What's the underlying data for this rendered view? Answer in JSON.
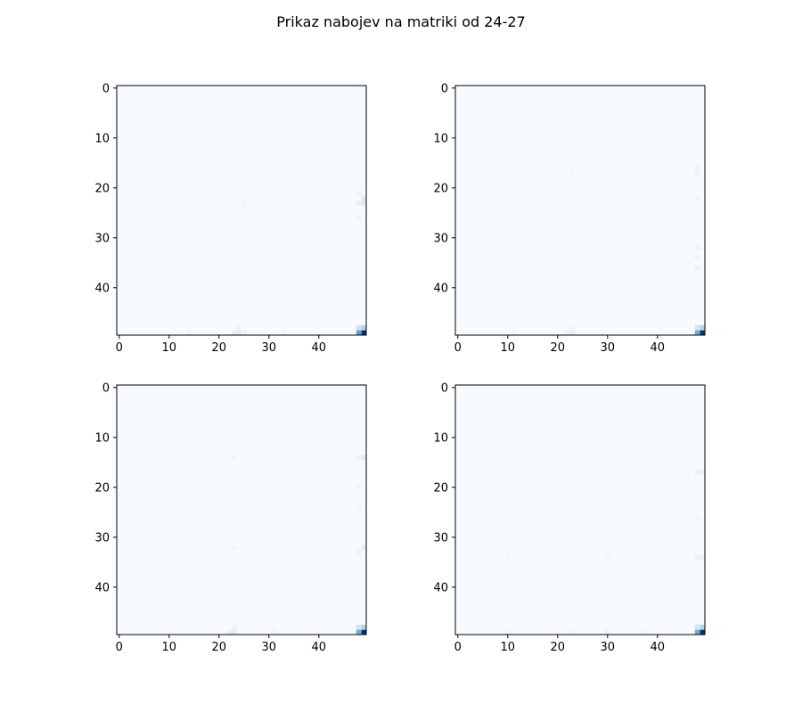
{
  "figure": {
    "suptitle": "Prikaz nabojev na matriki od 24-27"
  },
  "chart_data": [
    {
      "type": "heatmap",
      "colormap": "Blues",
      "grid": false,
      "matrix_size": [
        50,
        50
      ],
      "x_ticks": [
        "0",
        "10",
        "20",
        "30",
        "40"
      ],
      "y_ticks": [
        "0",
        "10",
        "20",
        "30",
        "40"
      ],
      "x_tick_values": [
        0,
        10,
        20,
        30,
        40
      ],
      "y_tick_values": [
        0,
        10,
        20,
        30,
        40
      ],
      "cells": [
        {
          "row": 49,
          "col": 49,
          "value": 1.0
        },
        {
          "row": 49,
          "col": 48,
          "value": 0.55
        },
        {
          "row": 48,
          "col": 49,
          "value": 0.3
        },
        {
          "row": 48,
          "col": 48,
          "value": 0.2
        },
        {
          "row": 22,
          "col": 49,
          "value": 0.12
        },
        {
          "row": 23,
          "col": 49,
          "value": 0.12
        },
        {
          "row": 23,
          "col": 48,
          "value": 0.08
        },
        {
          "row": 21,
          "col": 48,
          "value": 0.06
        },
        {
          "row": 26,
          "col": 48,
          "value": 0.06
        },
        {
          "row": 49,
          "col": 24,
          "value": 0.1
        },
        {
          "row": 49,
          "col": 23,
          "value": 0.08
        },
        {
          "row": 49,
          "col": 25,
          "value": 0.06
        },
        {
          "row": 48,
          "col": 24,
          "value": 0.06
        },
        {
          "row": 49,
          "col": 14,
          "value": 0.05
        },
        {
          "row": 49,
          "col": 33,
          "value": 0.04
        },
        {
          "row": 24,
          "col": 24,
          "value": 0.04
        },
        {
          "row": 23,
          "col": 25,
          "value": 0.04
        }
      ]
    },
    {
      "type": "heatmap",
      "colormap": "Blues",
      "grid": false,
      "matrix_size": [
        50,
        50
      ],
      "x_ticks": [
        "0",
        "10",
        "20",
        "30",
        "40"
      ],
      "y_ticks": [
        "0",
        "10",
        "20",
        "30",
        "40"
      ],
      "x_tick_values": [
        0,
        10,
        20,
        30,
        40
      ],
      "y_tick_values": [
        0,
        10,
        20,
        30,
        40
      ],
      "cells": [
        {
          "row": 49,
          "col": 49,
          "value": 1.0
        },
        {
          "row": 49,
          "col": 48,
          "value": 0.5
        },
        {
          "row": 48,
          "col": 49,
          "value": 0.3
        },
        {
          "row": 48,
          "col": 48,
          "value": 0.18
        },
        {
          "row": 16,
          "col": 48,
          "value": 0.05
        },
        {
          "row": 17,
          "col": 48,
          "value": 0.05
        },
        {
          "row": 22,
          "col": 48,
          "value": 0.04
        },
        {
          "row": 32,
          "col": 48,
          "value": 0.05
        },
        {
          "row": 34,
          "col": 48,
          "value": 0.05
        },
        {
          "row": 36,
          "col": 48,
          "value": 0.05
        },
        {
          "row": 49,
          "col": 23,
          "value": 0.08
        },
        {
          "row": 49,
          "col": 22,
          "value": 0.06
        },
        {
          "row": 48,
          "col": 23,
          "value": 0.05
        },
        {
          "row": 49,
          "col": 11,
          "value": 0.04
        },
        {
          "row": 17,
          "col": 23,
          "value": 0.03
        }
      ]
    },
    {
      "type": "heatmap",
      "colormap": "Blues",
      "grid": false,
      "matrix_size": [
        50,
        50
      ],
      "x_ticks": [
        "0",
        "10",
        "20",
        "30",
        "40"
      ],
      "y_ticks": [
        "0",
        "10",
        "20",
        "30",
        "40"
      ],
      "x_tick_values": [
        0,
        10,
        20,
        30,
        40
      ],
      "y_tick_values": [
        0,
        10,
        20,
        30,
        40
      ],
      "cells": [
        {
          "row": 49,
          "col": 49,
          "value": 1.0
        },
        {
          "row": 49,
          "col": 48,
          "value": 0.5
        },
        {
          "row": 48,
          "col": 49,
          "value": 0.3
        },
        {
          "row": 48,
          "col": 48,
          "value": 0.18
        },
        {
          "row": 14,
          "col": 49,
          "value": 0.1
        },
        {
          "row": 14,
          "col": 48,
          "value": 0.07
        },
        {
          "row": 32,
          "col": 49,
          "value": 0.08
        },
        {
          "row": 33,
          "col": 48,
          "value": 0.06
        },
        {
          "row": 24,
          "col": 48,
          "value": 0.04
        },
        {
          "row": 20,
          "col": 48,
          "value": 0.04
        },
        {
          "row": 49,
          "col": 23,
          "value": 0.1
        },
        {
          "row": 49,
          "col": 22,
          "value": 0.07
        },
        {
          "row": 48,
          "col": 23,
          "value": 0.05
        },
        {
          "row": 49,
          "col": 13,
          "value": 0.04
        },
        {
          "row": 49,
          "col": 31,
          "value": 0.04
        },
        {
          "row": 14,
          "col": 23,
          "value": 0.04
        },
        {
          "row": 32,
          "col": 23,
          "value": 0.04
        }
      ]
    },
    {
      "type": "heatmap",
      "colormap": "Blues",
      "grid": false,
      "matrix_size": [
        50,
        50
      ],
      "x_ticks": [
        "0",
        "10",
        "20",
        "30",
        "40"
      ],
      "y_ticks": [
        "0",
        "10",
        "20",
        "30",
        "40"
      ],
      "x_tick_values": [
        0,
        10,
        20,
        30,
        40
      ],
      "y_tick_values": [
        0,
        10,
        20,
        30,
        40
      ],
      "cells": [
        {
          "row": 49,
          "col": 49,
          "value": 1.0
        },
        {
          "row": 49,
          "col": 48,
          "value": 0.5
        },
        {
          "row": 48,
          "col": 49,
          "value": 0.3
        },
        {
          "row": 48,
          "col": 48,
          "value": 0.18
        },
        {
          "row": 17,
          "col": 48,
          "value": 0.07
        },
        {
          "row": 17,
          "col": 49,
          "value": 0.06
        },
        {
          "row": 34,
          "col": 48,
          "value": 0.07
        },
        {
          "row": 34,
          "col": 49,
          "value": 0.06
        },
        {
          "row": 26,
          "col": 48,
          "value": 0.04
        },
        {
          "row": 49,
          "col": 30,
          "value": 0.05
        },
        {
          "row": 49,
          "col": 37,
          "value": 0.04
        },
        {
          "row": 49,
          "col": 10,
          "value": 0.04
        },
        {
          "row": 49,
          "col": 14,
          "value": 0.04
        },
        {
          "row": 49,
          "col": 23,
          "value": 0.04
        },
        {
          "row": 34,
          "col": 10,
          "value": 0.03
        },
        {
          "row": 34,
          "col": 30,
          "value": 0.03
        }
      ]
    }
  ]
}
